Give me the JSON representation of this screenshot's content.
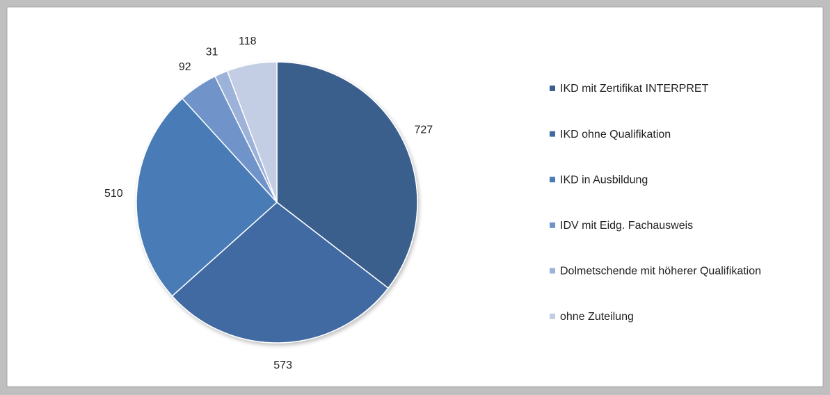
{
  "chart_data": {
    "type": "pie",
    "categories": [
      "IKD mit Zertifikat INTERPRET",
      "IKD ohne Qualifikation",
      "IKD in Ausbildung",
      "IDV mit Eidg. Fachausweis",
      "Dolmetschende mit höherer Qualifikation",
      "ohne Zuteilung"
    ],
    "values": [
      727,
      573,
      510,
      92,
      31,
      118
    ],
    "colors": [
      "#3b5e8c",
      "#406aa1",
      "#4a7bb7",
      "#7094c9",
      "#9db2d8",
      "#c3cee4"
    ],
    "legend": "right"
  }
}
